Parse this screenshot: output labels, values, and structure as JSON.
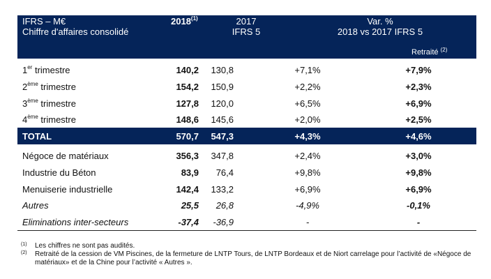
{
  "header": {
    "label_line1": "IFRS – M€",
    "label_line2": "Chiffre d'affaires consolidé",
    "col_2018": "2018",
    "col_2018_note": "(1)",
    "col_2017_line1": "2017",
    "col_2017_line2": "IFRS 5",
    "col_var_line1": "Var. %",
    "col_var_line2": "2018 vs 2017 IFRS 5",
    "col_retraite": "Retraité",
    "col_retraite_note": "(2)"
  },
  "quarters": [
    {
      "num": "1",
      "sup": "er",
      "label": " trimestre",
      "v2018": "140,2",
      "v2017": "130,8",
      "var": "+7,1%",
      "retraite": "+7,9%"
    },
    {
      "num": "2",
      "sup": "ème",
      "label": " trimestre",
      "v2018": "154,2",
      "v2017": "150,9",
      "var": "+2,2%",
      "retraite": "+2,3%"
    },
    {
      "num": "3",
      "sup": "ème",
      "label": " trimestre",
      "v2018": "127,8",
      "v2017": "120,0",
      "var": "+6,5%",
      "retraite": "+6,9%"
    },
    {
      "num": "4",
      "sup": "ème",
      "label": " trimestre",
      "v2018": "148,6",
      "v2017": "145,6",
      "var": "+2,0%",
      "retraite": "+2,5%"
    }
  ],
  "total": {
    "label": "TOTAL",
    "v2018": "570,7",
    "v2017": "547,3",
    "var": "+4,3%",
    "retraite": "+4,6%"
  },
  "segments": [
    {
      "label": "Négoce de matériaux",
      "v2018": "356,3",
      "v2017": "347,8",
      "var": "+2,4%",
      "retraite": "+3,0%"
    },
    {
      "label": "Industrie du Béton",
      "v2018": "83,9",
      "v2017": "76,4",
      "var": "+9,8%",
      "retraite": "+9,8%"
    },
    {
      "label": "Menuiserie industrielle",
      "v2018": "142,4",
      "v2017": "133,2",
      "var": "+6,9%",
      "retraite": "+6,9%"
    },
    {
      "label": "Autres",
      "v2018": "25,5",
      "v2017": "26,8",
      "var": "-4,9%",
      "retraite": "-0,1%"
    },
    {
      "label": "Eliminations inter-secteurs",
      "v2018": "-37,4",
      "v2017": "-36,9",
      "var": "-",
      "retraite": "-"
    }
  ],
  "notes": [
    {
      "num": "(1)",
      "text": "Les chiffres ne sont pas audités."
    },
    {
      "num": "(2)",
      "text": "Retraité de la cession de VM Piscines, de la fermeture de LNTP Tours, de LNTP Bordeaux et de Niort carrelage pour l’activité de «Négoce de matériaux» et de la Chine pour l’activité « Autres »."
    }
  ],
  "colors": {
    "header_bg": "#052459",
    "header_text": "#ffffff"
  }
}
